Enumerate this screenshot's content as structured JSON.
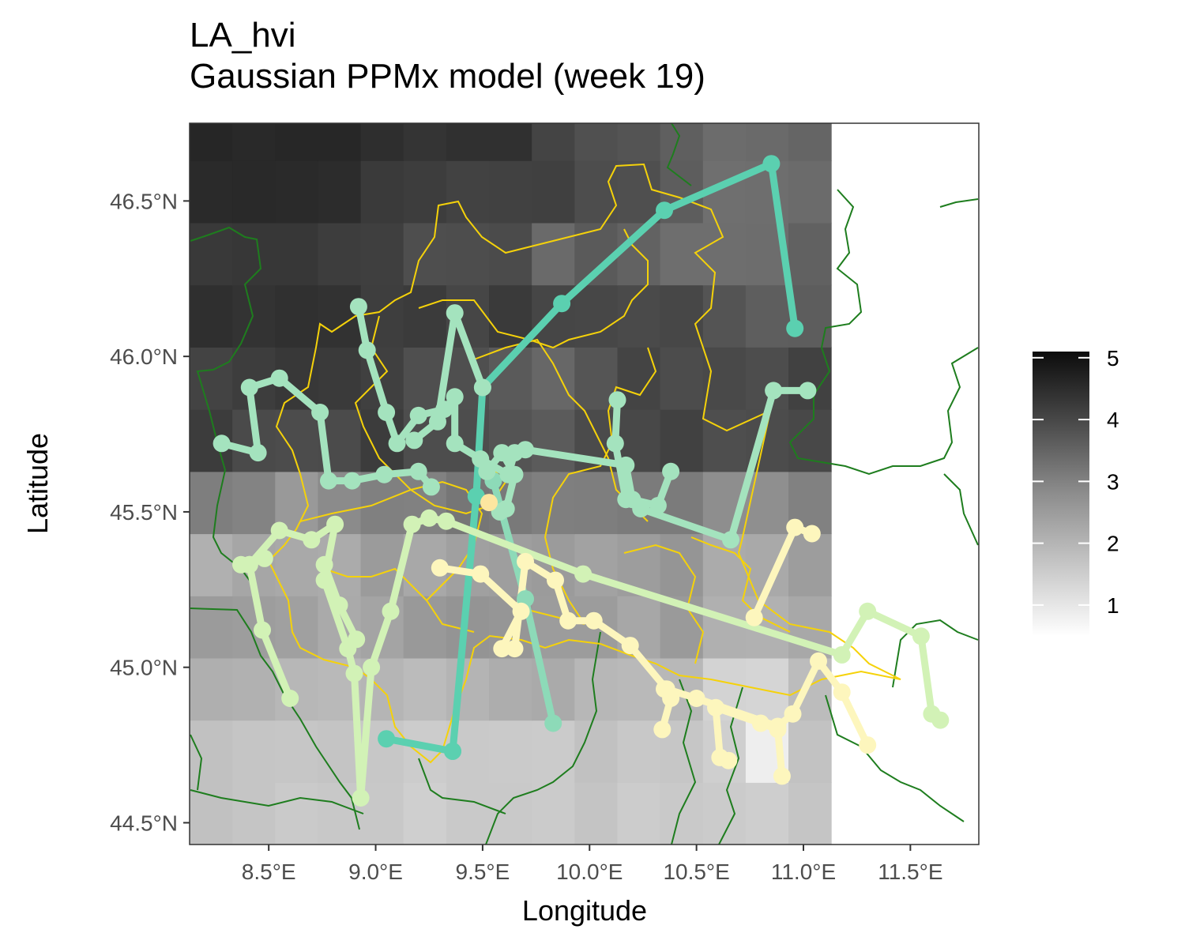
{
  "title": "LA_hvi",
  "subtitle": "Gaussian PPMx model (week 19)",
  "chart_data": {
    "type": "map",
    "title": "LA_hvi",
    "subtitle": "Gaussian PPMx model (week 19)",
    "xlabel": "Longitude",
    "ylabel": "Latitude",
    "xlim": [
      8.13,
      11.82
    ],
    "ylim": [
      44.43,
      46.75
    ],
    "x_ticks": [
      {
        "value": 8.5,
        "label": "8.5°E"
      },
      {
        "value": 9.0,
        "label": "9.0°E"
      },
      {
        "value": 9.5,
        "label": "9.5°E"
      },
      {
        "value": 10.0,
        "label": "10.0°E"
      },
      {
        "value": 10.5,
        "label": "10.5°E"
      },
      {
        "value": 11.0,
        "label": "11.0°E"
      },
      {
        "value": 11.5,
        "label": "11.5°E"
      }
    ],
    "y_ticks": [
      {
        "value": 44.5,
        "label": "44.5°N"
      },
      {
        "value": 45.0,
        "label": "45.0°N"
      },
      {
        "value": 45.5,
        "label": "45.5°N"
      },
      {
        "value": 46.0,
        "label": "46.0°N"
      },
      {
        "value": 46.5,
        "label": "46.5°N"
      }
    ],
    "legend": {
      "position": "right",
      "min": 0.5,
      "max": 5.1,
      "ticks": [
        {
          "value": 1,
          "label": "1"
        },
        {
          "value": 2,
          "label": "2"
        },
        {
          "value": 3,
          "label": "3"
        },
        {
          "value": 4,
          "label": "4"
        },
        {
          "value": 5,
          "label": "5"
        }
      ]
    },
    "heatmap": {
      "lon_start": 8.13,
      "lat_start": 44.43,
      "cell_deg": 0.2,
      "rows_bottom_to_top": [
        "C1C5CAC8C8CFC9C9CBC4CCC9CBCEC5",
        "C1C5C6C4C7CCC9CACBC1C8C6CFEEC2",
        "AFB1B7B9B5BBB4ADAAB7B9B8D3D5BC",
        "9B9DA0AAA49994969C9CA79AB0B1A8",
        "B0A6A9AB9BA8A09E9BA29D95ABA99D",
        "7E83998B808176797F7E7B7B8E8F81",
        "3C4A4C4B3C4D4D545B4B48414E4C48",
        "433D383A404F4F5A6755444C494D41",
        "2F3330323E3B463A46474A47545E5D",
        "3937373D3F4E4D4B6A5A626E6E6D61",
        "2A292A2C3A3D4241404D4F5D6F6E6B",
        "262927272E3430304450545F6C6A65"
      ]
    },
    "series": [
      {
        "name": "",
        "color": "#5bd0b0",
        "points": [
          [
            9.36,
            44.73
          ],
          [
            9.47,
            45.55
          ],
          [
            9.5,
            45.9
          ],
          [
            9.87,
            46.17
          ],
          [
            10.35,
            46.47
          ],
          [
            10.85,
            46.62
          ],
          [
            10.96,
            46.09
          ]
        ]
      },
      {
        "name": "",
        "color": "#5bd0b0",
        "points": [
          [
            9.05,
            44.77
          ],
          [
            9.36,
            44.73
          ]
        ]
      },
      {
        "name": "",
        "color": "#8ddab8",
        "points": [
          [
            9.55,
            45.6
          ],
          [
            9.7,
            45.22
          ],
          [
            9.83,
            44.82
          ]
        ]
      },
      {
        "name": "",
        "color": "#a4e3be",
        "points": [
          [
            8.28,
            45.72
          ],
          [
            8.45,
            45.69
          ],
          [
            8.41,
            45.9
          ],
          [
            8.55,
            45.93
          ],
          [
            8.74,
            45.82
          ],
          [
            8.78,
            45.6
          ],
          [
            8.89,
            45.6
          ],
          [
            9.04,
            45.62
          ],
          [
            9.2,
            45.63
          ],
          [
            9.26,
            45.58
          ]
        ]
      },
      {
        "name": "",
        "color": "#a4e3be",
        "points": [
          [
            8.92,
            46.16
          ],
          [
            8.96,
            46.02
          ],
          [
            9.05,
            45.82
          ],
          [
            9.1,
            45.72
          ],
          [
            9.2,
            45.81
          ],
          [
            9.32,
            45.83
          ],
          [
            9.37,
            45.87
          ],
          [
            9.37,
            45.72
          ],
          [
            9.49,
            45.67
          ],
          [
            9.62,
            45.62
          ],
          [
            9.65,
            45.69
          ],
          [
            9.7,
            45.7
          ],
          [
            10.17,
            45.65
          ],
          [
            10.2,
            45.54
          ],
          [
            10.32,
            45.52
          ],
          [
            10.38,
            45.63
          ]
        ]
      },
      {
        "name": "",
        "color": "#a4e3be",
        "points": [
          [
            9.52,
            45.63
          ],
          [
            9.59,
            45.69
          ],
          [
            9.65,
            45.62
          ],
          [
            9.61,
            45.51
          ],
          [
            9.58,
            45.5
          ]
        ]
      },
      {
        "name": "",
        "color": "#a4e3be",
        "points": [
          [
            10.13,
            45.86
          ],
          [
            10.12,
            45.72
          ],
          [
            10.17,
            45.54
          ],
          [
            10.24,
            45.51
          ],
          [
            10.66,
            45.41
          ],
          [
            10.86,
            45.89
          ],
          [
            11.02,
            45.89
          ]
        ]
      },
      {
        "name": "",
        "color": "#a4e3be",
        "points": [
          [
            9.18,
            45.73
          ],
          [
            9.29,
            45.79
          ],
          [
            9.37,
            46.14
          ],
          [
            9.5,
            45.9
          ]
        ]
      },
      {
        "name": "",
        "color": "#d2f2b6",
        "points": [
          [
            8.41,
            45.33
          ],
          [
            8.55,
            45.44
          ],
          [
            8.7,
            45.41
          ],
          [
            8.81,
            45.46
          ],
          [
            8.76,
            45.28
          ],
          [
            8.87,
            45.06
          ],
          [
            8.9,
            44.98
          ],
          [
            8.93,
            44.58
          ],
          [
            8.98,
            45.0
          ],
          [
            9.07,
            45.18
          ],
          [
            9.17,
            45.46
          ],
          [
            9.25,
            45.48
          ],
          [
            9.33,
            45.47
          ],
          [
            9.97,
            45.3
          ],
          [
            11.18,
            45.04
          ],
          [
            11.3,
            45.18
          ],
          [
            11.55,
            45.1
          ],
          [
            11.6,
            44.85
          ],
          [
            11.64,
            44.83
          ]
        ]
      },
      {
        "name": "",
        "color": "#d2f2b6",
        "points": [
          [
            8.6,
            44.9
          ],
          [
            8.47,
            45.12
          ],
          [
            8.41,
            45.33
          ],
          [
            8.37,
            45.33
          ],
          [
            8.48,
            45.35
          ]
        ]
      },
      {
        "name": "",
        "color": "#d2f2b6",
        "points": [
          [
            8.76,
            45.33
          ],
          [
            8.83,
            45.2
          ],
          [
            8.91,
            45.09
          ]
        ]
      },
      {
        "name": "",
        "color": "#fdf6bd",
        "points": [
          [
            9.3,
            45.32
          ],
          [
            9.49,
            45.3
          ],
          [
            9.68,
            45.18
          ],
          [
            9.59,
            45.06
          ],
          [
            9.65,
            45.06
          ],
          [
            9.7,
            45.34
          ],
          [
            9.84,
            45.28
          ],
          [
            9.9,
            45.15
          ],
          [
            10.02,
            45.15
          ],
          [
            10.19,
            45.07
          ],
          [
            10.36,
            44.93
          ],
          [
            10.5,
            44.9
          ],
          [
            10.88,
            44.81
          ],
          [
            10.95,
            44.85
          ],
          [
            11.07,
            45.02
          ],
          [
            11.18,
            44.92
          ],
          [
            11.3,
            44.75
          ]
        ]
      },
      {
        "name": "",
        "color": "#fdf6bd",
        "points": [
          [
            10.61,
            44.71
          ],
          [
            10.59,
            44.87
          ],
          [
            10.8,
            44.82
          ],
          [
            10.88,
            44.8
          ],
          [
            10.9,
            44.65
          ]
        ]
      },
      {
        "name": "",
        "color": "#fdf6bd",
        "points": [
          [
            10.77,
            45.16
          ],
          [
            10.96,
            45.45
          ],
          [
            11.04,
            45.43
          ]
        ]
      },
      {
        "name": "",
        "color": "#fdf6bd",
        "points": [
          [
            10.34,
            44.8
          ],
          [
            10.38,
            44.9
          ],
          [
            10.35,
            44.93
          ]
        ]
      },
      {
        "name": "",
        "color": "#fdf6bd",
        "points": [
          [
            10.65,
            44.7
          ],
          [
            10.61,
            44.71
          ]
        ]
      }
    ],
    "extra_points": [
      {
        "point": [
          9.53,
          45.53
        ],
        "color": "#fde6a0"
      }
    ]
  }
}
